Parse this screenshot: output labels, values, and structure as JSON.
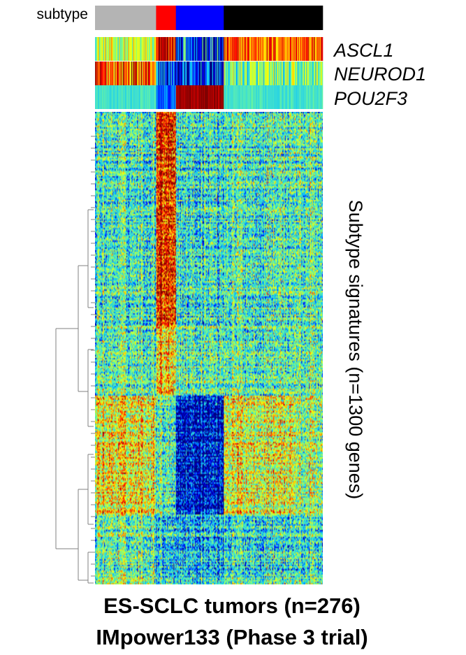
{
  "chart_data": {
    "type": "heatmap",
    "subtype_bar": {
      "label": "subtype",
      "groups": [
        {
          "color": "#b4b4b4",
          "samples": 74
        },
        {
          "color": "#ff0000",
          "samples": 24
        },
        {
          "color": "#0000ff",
          "samples": 58
        },
        {
          "color": "#000000",
          "samples": 120
        }
      ]
    },
    "gene_rows": [
      "ASCL1",
      "NEUROD1",
      "POU2F3"
    ],
    "ylabel": "Subtype signatures (n=1300 genes)",
    "caption": [
      "ES-SCLC tumors (n=276)",
      "IMpower133 (Phase 3 trial)"
    ],
    "n_samples": 276,
    "n_genes": 1300,
    "colormap": "jet",
    "colormap_stops": [
      "#00007f",
      "#0000ff",
      "#00bfff",
      "#40e0d0",
      "#7fff7f",
      "#ffff00",
      "#ff8000",
      "#ff0000",
      "#7f0000"
    ]
  }
}
